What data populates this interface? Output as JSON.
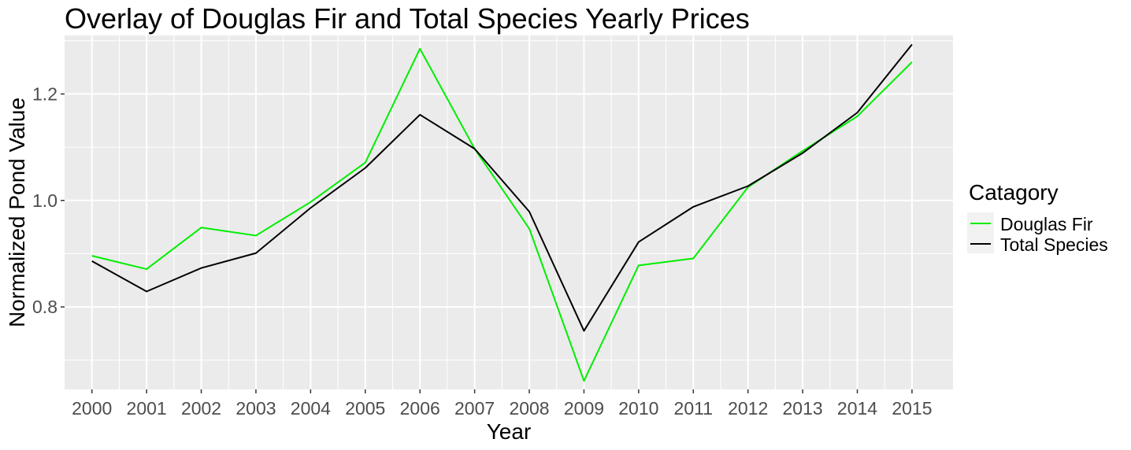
{
  "chart_data": {
    "type": "line",
    "title": "Overlay of Douglas Fir and Total Species Yearly Prices",
    "xlabel": "Year",
    "ylabel": "Normalized Pond Value",
    "x": [
      2000,
      2001,
      2002,
      2003,
      2004,
      2005,
      2006,
      2007,
      2008,
      2009,
      2010,
      2011,
      2012,
      2013,
      2014,
      2015
    ],
    "x_tick_labels": [
      "2000",
      "2001",
      "2002",
      "2003",
      "2004",
      "2005",
      "2006",
      "2007",
      "2008",
      "2009",
      "2010",
      "2011",
      "2012",
      "2013",
      "2014",
      "2015"
    ],
    "y_ticks": [
      0.8,
      1.0,
      1.2
    ],
    "y_tick_labels": [
      "0.8",
      "1.0",
      "1.2"
    ],
    "xlim": [
      1999.5,
      2015.75
    ],
    "ylim": [
      0.645,
      1.31
    ],
    "grid": true,
    "legend": {
      "title": "Catagory",
      "position": "right"
    },
    "series": [
      {
        "name": "Douglas Fir",
        "color": "#00ee00",
        "values": [
          0.896,
          0.871,
          0.949,
          0.934,
          0.997,
          1.071,
          1.285,
          1.097,
          0.947,
          0.661,
          0.878,
          0.891,
          1.025,
          1.093,
          1.158,
          1.26
        ]
      },
      {
        "name": "Total Species",
        "color": "#000000",
        "values": [
          0.886,
          0.829,
          0.873,
          0.901,
          0.986,
          1.061,
          1.161,
          1.097,
          0.979,
          0.755,
          0.922,
          0.988,
          1.027,
          1.089,
          1.165,
          1.293
        ]
      }
    ]
  }
}
